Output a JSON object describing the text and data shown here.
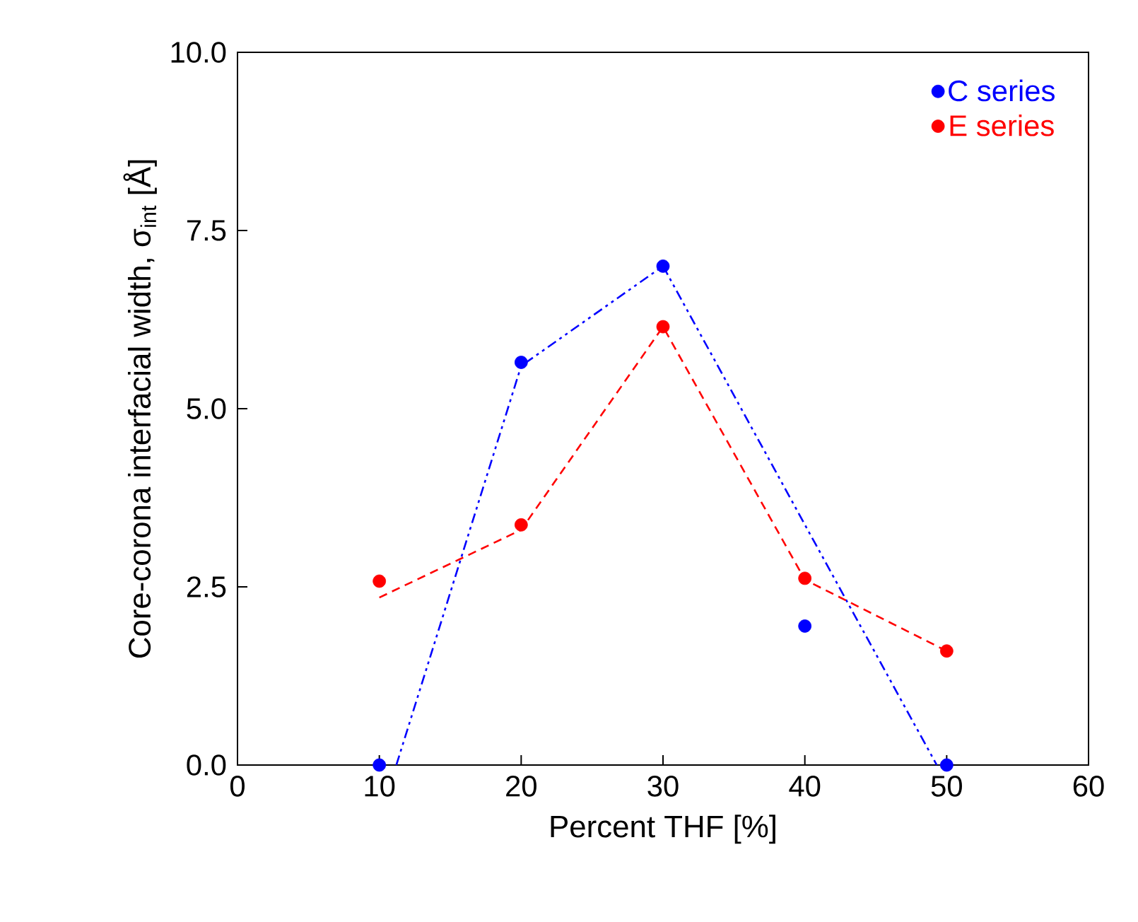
{
  "chart_data": {
    "type": "scatter",
    "xlabel": "Percent THF [%]",
    "ylabel": "Core-corona interfacial width, σ$_{int}$ [Å]",
    "xlim": [
      0,
      60
    ],
    "xticks": [
      0,
      10,
      20,
      30,
      40,
      50,
      60
    ],
    "ylim": [
      0,
      10
    ],
    "yticks": [
      {
        "value": 0,
        "label": "0.0"
      },
      {
        "value": 2.5,
        "label": "2.5"
      },
      {
        "value": 5,
        "label": "5.0"
      },
      {
        "value": 7.5,
        "label": "7.5"
      },
      {
        "value": 10,
        "label": "10.0"
      }
    ],
    "legend": "top right",
    "marker": "circle",
    "grid": false,
    "x": [
      10,
      20,
      30,
      40,
      50
    ],
    "series": [
      {
        "name": "C series",
        "color": "#0000ff",
        "values": [
          0,
          5.65,
          7.0,
          1.95,
          0
        ]
      },
      {
        "name": "E series",
        "color": "#ff0000",
        "values": [
          2.58,
          3.37,
          6.15,
          2.62,
          1.6
        ]
      },
      {
        "type": "line",
        "color": "#0000ff",
        "line_style": "dashdot",
        "marker": "none",
        "x": [
          11.2,
          20,
          30,
          49.3
        ],
        "values": [
          0,
          5.6,
          7.0,
          0
        ]
      },
      {
        "type": "line",
        "color": "#ff0000",
        "line_style": "dashed",
        "marker": "none",
        "x": [
          10,
          20,
          30,
          40,
          50
        ],
        "values": [
          2.35,
          3.3,
          6.15,
          2.6,
          1.6
        ]
      }
    ]
  }
}
